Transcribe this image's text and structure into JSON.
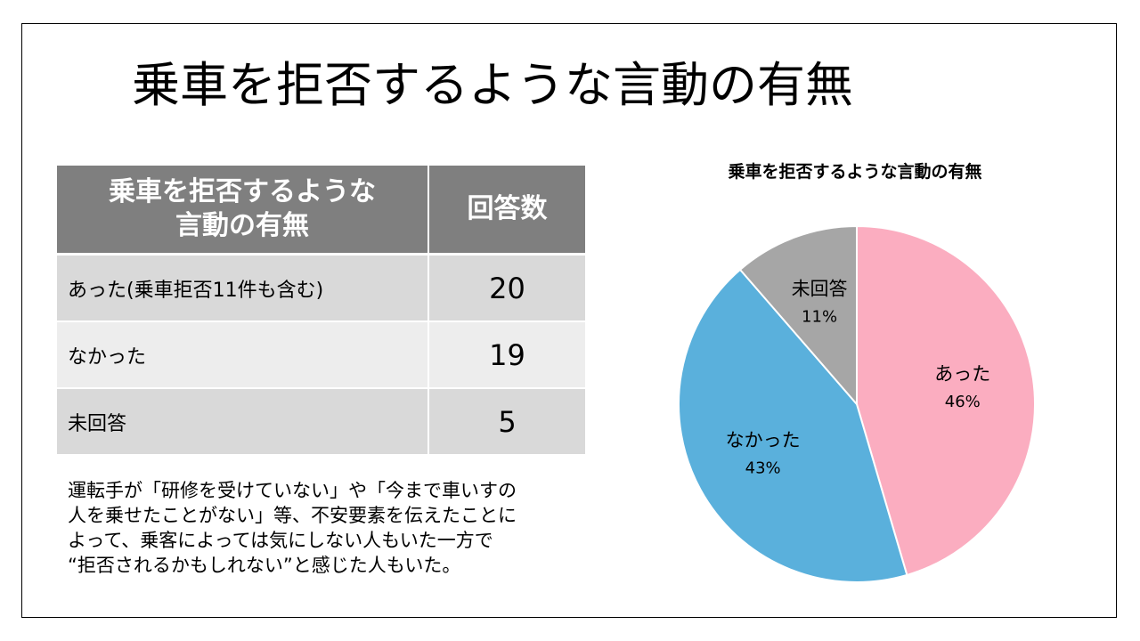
{
  "slide": {
    "title": "乗車を拒否するような言動の有無"
  },
  "table": {
    "header": {
      "col1_line1": "乗車を拒否するような",
      "col1_line2": "言動の有無",
      "col2": "回答数"
    },
    "rows": [
      {
        "label": "あった(乗車拒否11件も含む)",
        "count": "20"
      },
      {
        "label": "なかった",
        "count": "19"
      },
      {
        "label": "未回答",
        "count": "5"
      }
    ]
  },
  "note": {
    "text": "運転手が「研修を受けていない」や「今まで車いすの\n人を乗せたことがない」等、不安要素を伝えたことに\nよって、乗客によっては気にしない人もいた一方で\n“拒否されるかもしれない”と感じた人もいた。"
  },
  "chart_data": {
    "type": "pie",
    "title": "乗車を拒否するような言動の有無",
    "slices": [
      {
        "label": "あった",
        "value": 20,
        "percent_label": "46%",
        "color": "#fbadc0"
      },
      {
        "label": "なかった",
        "value": 19,
        "percent_label": "43%",
        "color": "#5ab0dc"
      },
      {
        "label": "未回答",
        "value": 5,
        "percent_label": "11%",
        "color": "#a6a6a6"
      }
    ],
    "start": "12 o'clock",
    "direction": "clockwise",
    "legend": "none",
    "data_labels": "inside"
  }
}
